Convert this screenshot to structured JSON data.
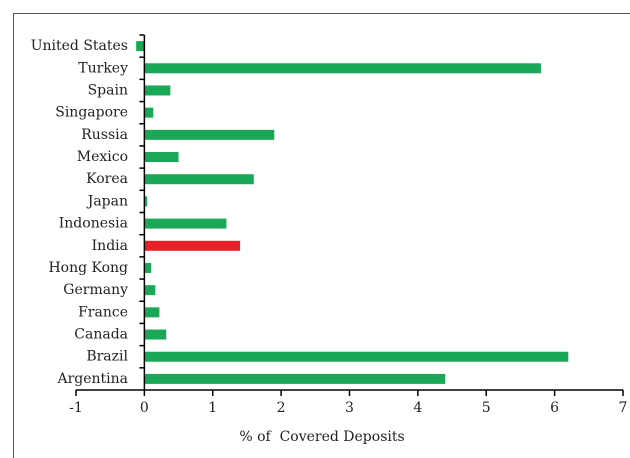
{
  "chart_data": {
    "type": "barh",
    "categories": [
      "United States",
      "Turkey",
      "Spain",
      "Singapore",
      "Russia",
      "Mexico",
      "Korea",
      "Japan",
      "Indonesia",
      "India",
      "Hong Kong",
      "Germany",
      "France",
      "Canada",
      "Brazil",
      "Argentina"
    ],
    "values": [
      -0.12,
      5.8,
      0.38,
      0.13,
      1.9,
      0.5,
      1.6,
      0.04,
      1.2,
      1.4,
      0.1,
      0.16,
      0.22,
      0.32,
      6.2,
      4.4
    ],
    "colors": [
      "#1aa858",
      "#1aa858",
      "#1aa858",
      "#1aa858",
      "#1aa858",
      "#1aa858",
      "#1aa858",
      "#1aa858",
      "#1aa858",
      "#e8202a",
      "#1aa858",
      "#1aa858",
      "#1aa858",
      "#1aa858",
      "#1aa858",
      "#1aa858"
    ],
    "x_label": "% of  Covered Deposits",
    "xlim": [
      -1,
      7
    ],
    "xticks": [
      -1,
      0,
      1,
      2,
      3,
      4,
      5,
      6,
      7
    ]
  }
}
